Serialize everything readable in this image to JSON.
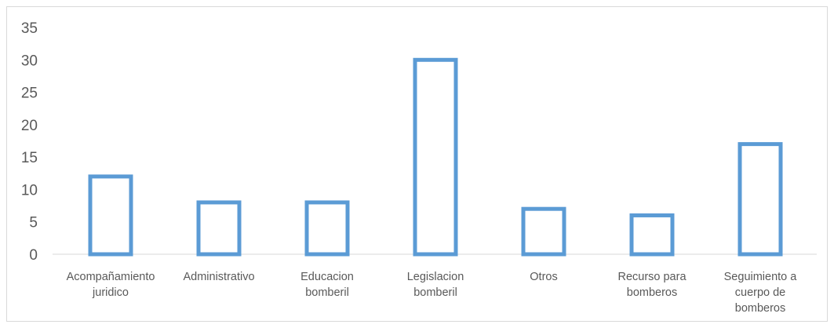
{
  "chart_data": {
    "type": "bar",
    "title": "",
    "xlabel": "",
    "ylabel": "",
    "ylim": [
      0,
      35
    ],
    "yticks": [
      0,
      5,
      10,
      15,
      20,
      25,
      30,
      35
    ],
    "grid": false,
    "legend": "none",
    "categories": [
      [
        "Acompañamiento",
        "juridico"
      ],
      [
        "Administrativo"
      ],
      [
        "Educacion",
        "bomberil"
      ],
      [
        "Legislacion",
        "bomberil"
      ],
      [
        "Otros"
      ],
      [
        "Recurso para",
        "bomberos"
      ],
      [
        "Seguimiento a",
        "cuerpo de",
        "bomberos"
      ]
    ],
    "series": [
      {
        "values": [
          12,
          8,
          8,
          30,
          7,
          6,
          17
        ]
      }
    ],
    "colors": {
      "bar_outline": "#5b9bd5",
      "bar_fill": "#ffffff",
      "axis_line": "#d9d9d9",
      "text": "#595959"
    }
  }
}
